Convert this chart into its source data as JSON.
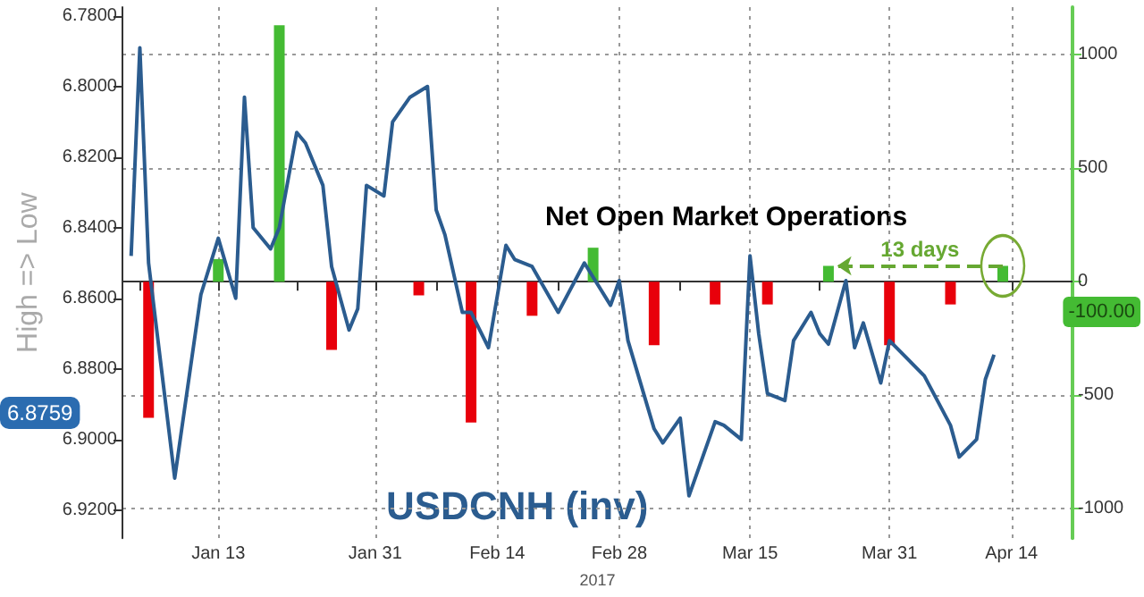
{
  "chart_data": {
    "type": "line",
    "ylabel": "High => Low",
    "xlabel": "2017",
    "xlim": [
      "2017-01-02",
      "2017-04-21"
    ],
    "xticks": [
      {
        "value": "2017-01-04",
        "label": null
      },
      {
        "value": "2017-01-13",
        "label": "Jan 13"
      },
      {
        "value": "2017-01-22",
        "label": null
      },
      {
        "value": "2017-01-31",
        "label": "Jan 31"
      },
      {
        "value": "2017-02-07",
        "label": null
      },
      {
        "value": "2017-02-14",
        "label": "Feb 14"
      },
      {
        "value": "2017-02-21",
        "label": null
      },
      {
        "value": "2017-02-28",
        "label": "Feb 28"
      },
      {
        "value": "2017-03-07",
        "label": null
      },
      {
        "value": "2017-03-15",
        "label": "Mar 15"
      },
      {
        "value": "2017-03-23",
        "label": null
      },
      {
        "value": "2017-03-31",
        "label": "Mar 31"
      },
      {
        "value": "2017-04-07",
        "label": null
      },
      {
        "value": "2017-04-14",
        "label": "Apr 14"
      }
    ],
    "ylim": [
      6.928,
      6.7775
    ],
    "yticks": [
      {
        "value": 6.78,
        "label": "6.7800"
      },
      {
        "value": 6.8,
        "label": "6.8000"
      },
      {
        "value": 6.82,
        "label": "6.8200"
      },
      {
        "value": 6.84,
        "label": "6.8400"
      },
      {
        "value": 6.86,
        "label": "6.8600"
      },
      {
        "value": 6.88,
        "label": "6.8800"
      },
      {
        "value": 6.9,
        "label": "6.9000"
      },
      {
        "value": 6.92,
        "label": "6.9200"
      }
    ],
    "y2lim": [
      -1130,
      1210
    ],
    "y2ticks": [
      -1000,
      -500,
      0,
      500,
      1000
    ],
    "grid": true,
    "legend": false,
    "annotations": [
      "13 days",
      "6.8759",
      "-100.00"
    ],
    "series": [
      {
        "name": "USDCNH (inv)",
        "color": "#2b5c8f",
        "x": [
          "2017-01-03",
          "2017-01-04",
          "2017-01-05",
          "2017-01-08",
          "2017-01-11",
          "2017-01-13",
          "2017-01-15",
          "2017-01-16",
          "2017-01-17",
          "2017-01-19",
          "2017-01-20",
          "2017-01-22",
          "2017-01-23",
          "2017-01-25",
          "2017-01-26",
          "2017-01-28",
          "2017-01-29",
          "2017-01-30",
          "2017-02-01",
          "2017-02-02",
          "2017-02-04",
          "2017-02-06",
          "2017-02-07",
          "2017-02-08",
          "2017-02-10",
          "2017-02-11",
          "2017-02-13",
          "2017-02-15",
          "2017-02-16",
          "2017-02-18",
          "2017-02-21",
          "2017-02-24",
          "2017-02-27",
          "2017-02-28",
          "2017-03-01",
          "2017-03-04",
          "2017-03-05",
          "2017-03-07",
          "2017-03-08",
          "2017-03-11",
          "2017-03-12",
          "2017-03-14",
          "2017-03-15",
          "2017-03-16",
          "2017-03-17",
          "2017-03-19",
          "2017-03-20",
          "2017-03-22",
          "2017-03-23",
          "2017-03-24",
          "2017-03-26",
          "2017-03-27",
          "2017-03-28",
          "2017-03-30",
          "2017-03-31",
          "2017-04-04",
          "2017-04-07",
          "2017-04-08",
          "2017-04-10",
          "2017-04-11",
          "2017-04-12"
        ],
        "values": [
          6.848,
          6.789,
          6.85,
          6.911,
          6.859,
          6.843,
          6.86,
          6.803,
          6.84,
          6.846,
          6.84,
          6.813,
          6.816,
          6.828,
          6.851,
          6.869,
          6.863,
          6.828,
          6.831,
          6.81,
          6.803,
          6.8,
          6.835,
          6.842,
          6.864,
          6.864,
          6.874,
          6.845,
          6.849,
          6.851,
          6.864,
          6.85,
          6.862,
          6.855,
          6.872,
          6.897,
          6.901,
          6.894,
          6.916,
          6.895,
          6.896,
          6.9,
          6.848,
          6.87,
          6.887,
          6.889,
          6.872,
          6.864,
          6.87,
          6.873,
          6.855,
          6.874,
          6.867,
          6.884,
          6.872,
          6.882,
          6.896,
          6.905,
          6.9,
          6.883,
          6.876
        ]
      },
      {
        "name": "Net Open Market Operations",
        "type": "bar",
        "axis": "y2",
        "x": [
          "2017-01-05",
          "2017-01-13",
          "2017-01-20",
          "2017-01-26",
          "2017-02-05",
          "2017-02-11",
          "2017-02-18",
          "2017-02-25",
          "2017-03-04",
          "2017-03-11",
          "2017-03-17",
          "2017-03-24",
          "2017-03-31",
          "2017-04-07",
          "2017-04-13"
        ],
        "values": [
          -600,
          100,
          1130,
          -300,
          -60,
          -620,
          -150,
          150,
          -280,
          -100,
          -100,
          70,
          -280,
          -100,
          70
        ],
        "colors": [
          "#e8000b",
          "#44bb33",
          "#44bb33",
          "#e8000b",
          "#e8000b",
          "#e8000b",
          "#e8000b",
          "#44bb33",
          "#e8000b",
          "#e8000b",
          "#e8000b",
          "#44bb33",
          "#e8000b",
          "#e8000b",
          "#44bb33"
        ]
      }
    ]
  }
}
